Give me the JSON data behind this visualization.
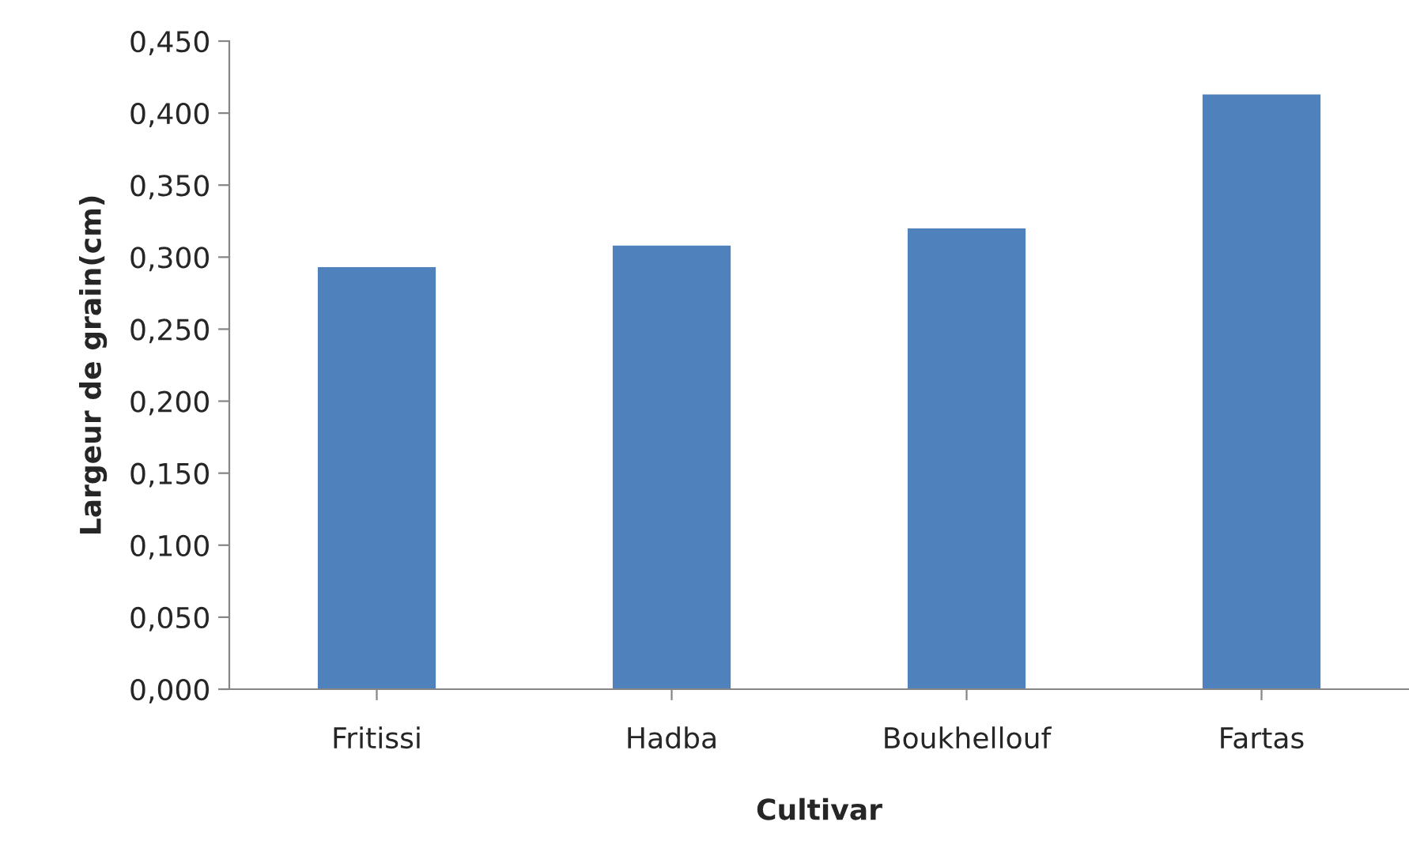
{
  "chart_data": {
    "type": "bar",
    "xlabel": "Cultivar",
    "ylabel": "Largeur de grain(cm)",
    "categories": [
      "Fritissi",
      "Hadba",
      "Boukhellouf",
      "Fartas"
    ],
    "values": [
      0.293,
      0.308,
      0.32,
      0.413
    ],
    "color": "#4f81bd",
    "ylim": [
      0,
      0.45
    ],
    "yticks": [
      {
        "value": 0,
        "label": "0,000"
      },
      {
        "value": 0.05,
        "label": "0,050"
      },
      {
        "value": 0.1,
        "label": "0,100"
      },
      {
        "value": 0.15,
        "label": "0,150"
      },
      {
        "value": 0.2,
        "label": "0,200"
      },
      {
        "value": 0.25,
        "label": "0,250"
      },
      {
        "value": 0.3,
        "label": "0,300"
      },
      {
        "value": 0.35,
        "label": "0,350"
      },
      {
        "value": 0.4,
        "label": "0,400"
      },
      {
        "value": 0.45,
        "label": "0,450"
      }
    ],
    "grid": false
  }
}
